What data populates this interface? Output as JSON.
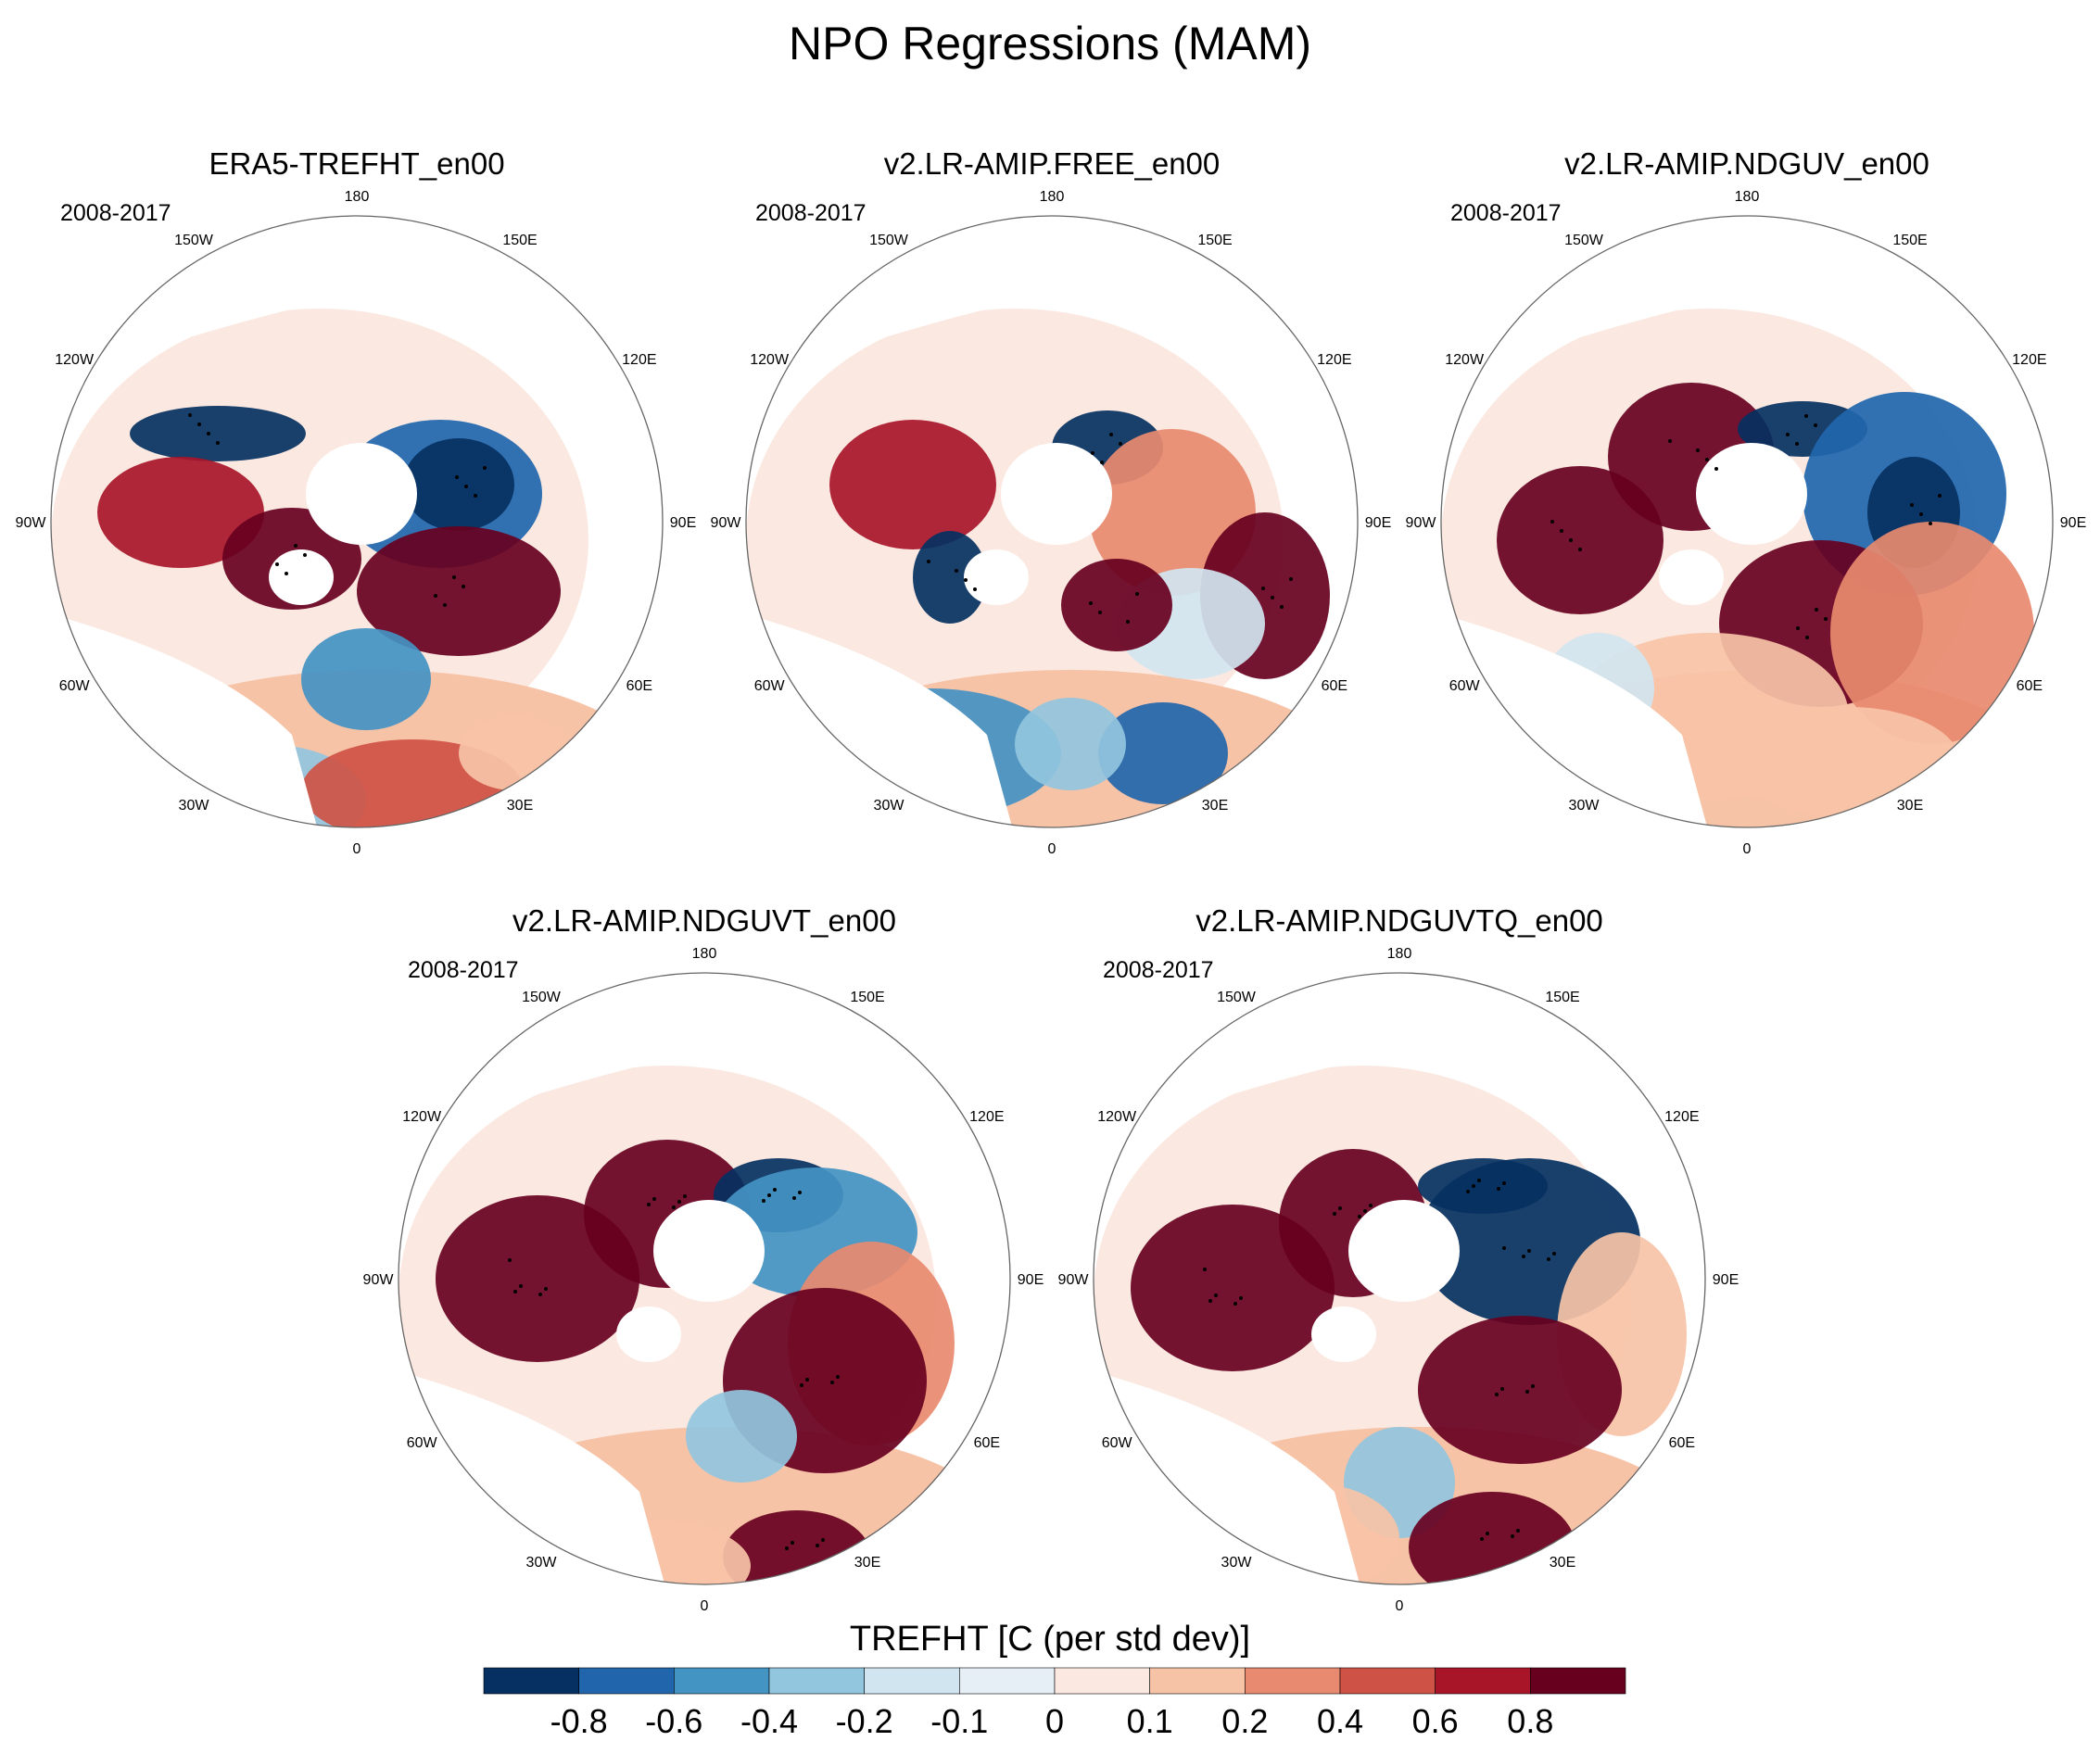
{
  "title": "NPO Regressions (MAM)",
  "colorbar": {
    "title": "TREFHT [C (per std dev)]",
    "colors": [
      "#053061",
      "#2166ac",
      "#4393c3",
      "#92c5de",
      "#d1e5f0",
      "#e6eef6",
      "#fbe9e1",
      "#f7c3a7",
      "#e88a6f",
      "#cf5246",
      "#a81529",
      "#67001f"
    ],
    "labels": [
      "-0.8",
      "-0.6",
      "-0.4",
      "-0.2",
      "-0.1",
      "0",
      "0.1",
      "0.2",
      "0.4",
      "0.6",
      "0.8"
    ]
  },
  "chart_data": [
    {
      "type": "heatmap",
      "title": "ERA5-TREFHT_en00",
      "period": "2008-2017",
      "lon_labels": [
        "180",
        "150E",
        "120E",
        "90E",
        "60E",
        "30E",
        "0",
        "30W",
        "60W",
        "90W",
        "120W",
        "150W"
      ]
    },
    {
      "type": "heatmap",
      "title": "v2.LR-AMIP.FREE_en00",
      "period": "2008-2017",
      "lon_labels": [
        "180",
        "150E",
        "120E",
        "90E",
        "60E",
        "30E",
        "0",
        "30W",
        "60W",
        "90W",
        "120W",
        "150W"
      ]
    },
    {
      "type": "heatmap",
      "title": "v2.LR-AMIP.NDGUV_en00",
      "period": "2008-2017",
      "lon_labels": [
        "180",
        "150E",
        "120E",
        "90E",
        "60E",
        "30E",
        "0",
        "30W",
        "60W",
        "90W",
        "120W",
        "150W"
      ]
    },
    {
      "type": "heatmap",
      "title": "v2.LR-AMIP.NDGUVT_en00",
      "period": "2008-2017",
      "lon_labels": [
        "180",
        "150E",
        "120E",
        "90E",
        "60E",
        "30E",
        "0",
        "30W",
        "60W",
        "90W",
        "120W",
        "150W"
      ]
    },
    {
      "type": "heatmap",
      "title": "v2.LR-AMIP.NDGUVTQ_en00",
      "period": "2008-2017",
      "lon_labels": [
        "180",
        "150E",
        "120E",
        "90E",
        "60E",
        "30E",
        "0",
        "30W",
        "60W",
        "90W",
        "120W",
        "150W"
      ]
    }
  ]
}
